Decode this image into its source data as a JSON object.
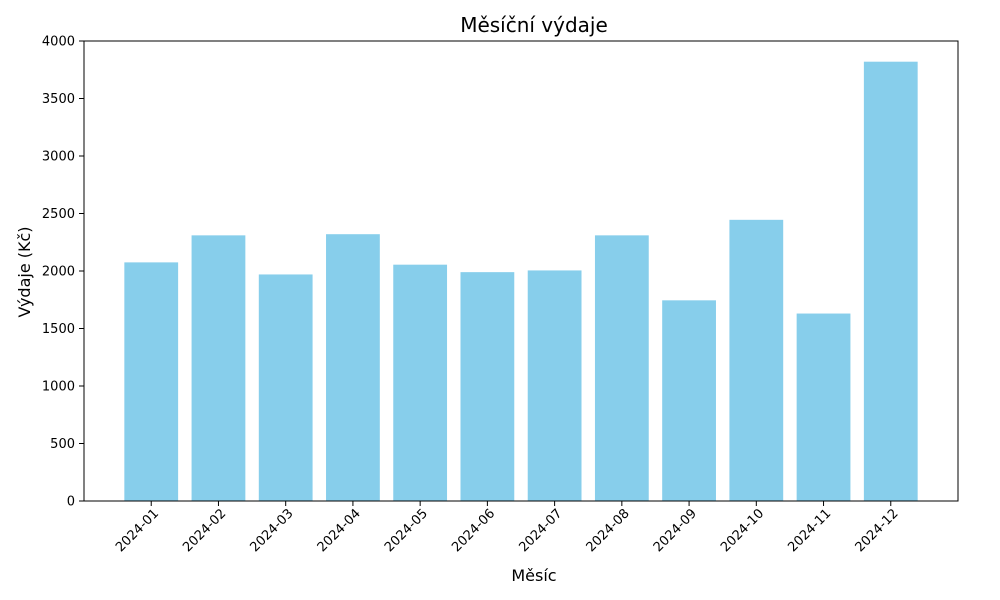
{
  "chart_data": {
    "type": "bar",
    "title": "Měsíční výdaje",
    "xlabel": "Měsíc",
    "ylabel": "Výdaje (Kč)",
    "categories": [
      "2024-01",
      "2024-02",
      "2024-03",
      "2024-04",
      "2024-05",
      "2024-06",
      "2024-07",
      "2024-08",
      "2024-09",
      "2024-10",
      "2024-11",
      "2024-12"
    ],
    "values": [
      2075,
      2310,
      1970,
      2320,
      2055,
      1990,
      2005,
      2310,
      1745,
      2445,
      1630,
      3820
    ],
    "ylim": [
      0,
      4000
    ],
    "yticks": [
      0,
      500,
      1000,
      1500,
      2000,
      2500,
      3000,
      3500,
      4000
    ],
    "bar_color": "#87CEEB",
    "grid": false,
    "legend": "none"
  }
}
